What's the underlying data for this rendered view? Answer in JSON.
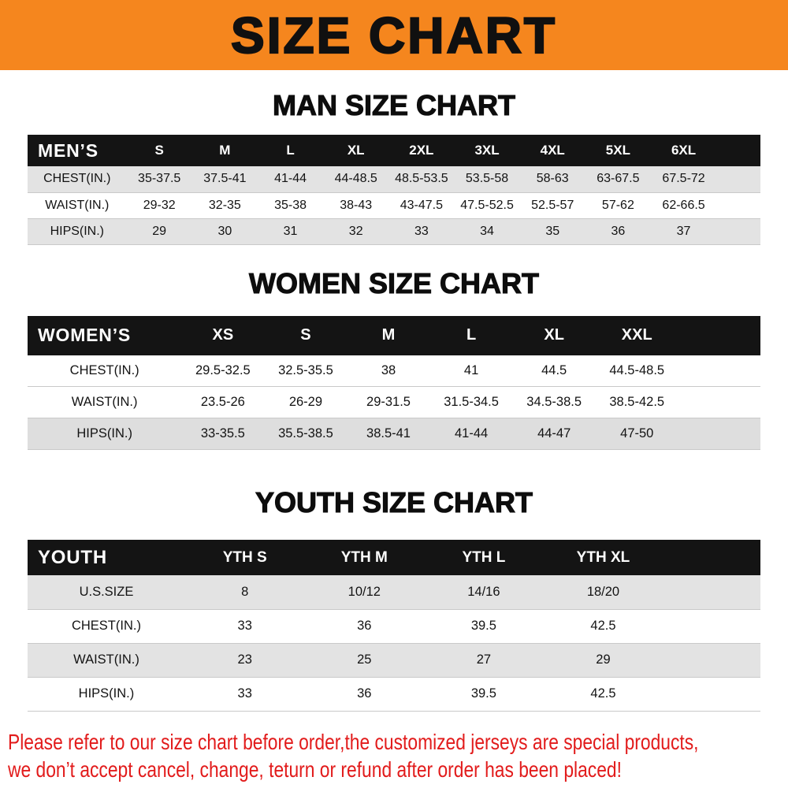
{
  "banner": {
    "title": "SIZE CHART"
  },
  "colors": {
    "banner_bg": "#F5861E",
    "table_header_bg": "#141414",
    "stripe_gray": "#E3E3E3",
    "footer_text": "#E21B1B"
  },
  "sections": {
    "men": {
      "heading": "MAN SIZE CHART",
      "table": {
        "header_label": "MEN’S",
        "columns": [
          "S",
          "M",
          "L",
          "XL",
          "2XL",
          "3XL",
          "4XL",
          "5XL",
          "6XL"
        ],
        "rows": [
          {
            "label": "CHEST(IN.)",
            "values": [
              "35-37.5",
              "37.5-41",
              "41-44",
              "44-48.5",
              "48.5-53.5",
              "53.5-58",
              "58-63",
              "63-67.5",
              "67.5-72"
            ]
          },
          {
            "label": "WAIST(IN.)",
            "values": [
              "29-32",
              "32-35",
              "35-38",
              "38-43",
              "43-47.5",
              "47.5-52.5",
              "52.5-57",
              "57-62",
              "62-66.5"
            ]
          },
          {
            "label": "HIPS(IN.)",
            "values": [
              "29",
              "30",
              "31",
              "32",
              "33",
              "34",
              "35",
              "36",
              "37"
            ]
          }
        ]
      }
    },
    "women": {
      "heading": "WOMEN SIZE CHART",
      "table": {
        "header_label": "WOMEN’S",
        "columns": [
          "XS",
          "S",
          "M",
          "L",
          "XL",
          "XXL"
        ],
        "rows": [
          {
            "label": "CHEST(IN.)",
            "values": [
              "29.5-32.5",
              "32.5-35.5",
              "38",
              "41",
              "44.5",
              "44.5-48.5"
            ]
          },
          {
            "label": "WAIST(IN.)",
            "values": [
              "23.5-26",
              "26-29",
              "29-31.5",
              "31.5-34.5",
              "34.5-38.5",
              "38.5-42.5"
            ]
          },
          {
            "label": "HIPS(IN.)",
            "values": [
              "33-35.5",
              "35.5-38.5",
              "38.5-41",
              "41-44",
              "44-47",
              "47-50"
            ]
          }
        ]
      }
    },
    "youth": {
      "heading": "YOUTH SIZE CHART",
      "table": {
        "header_label": "YOUTH",
        "columns": [
          "YTH S",
          "YTH M",
          "YTH L",
          "YTH XL"
        ],
        "rows": [
          {
            "label": "U.S.SIZE",
            "values": [
              "8",
              "10/12",
              "14/16",
              "18/20"
            ]
          },
          {
            "label": "CHEST(IN.)",
            "values": [
              "33",
              "36",
              "39.5",
              "42.5"
            ]
          },
          {
            "label": "WAIST(IN.)",
            "values": [
              "23",
              "25",
              "27",
              "29"
            ]
          },
          {
            "label": "HIPS(IN.)",
            "values": [
              "33",
              "36",
              "39.5",
              "42.5"
            ]
          }
        ]
      }
    }
  },
  "footer": {
    "lines": [
      "Please refer to our size chart before order,the customized jerseys are special products,",
      "we don’t accept cancel, change, teturn or refund after order has been placed!"
    ]
  }
}
